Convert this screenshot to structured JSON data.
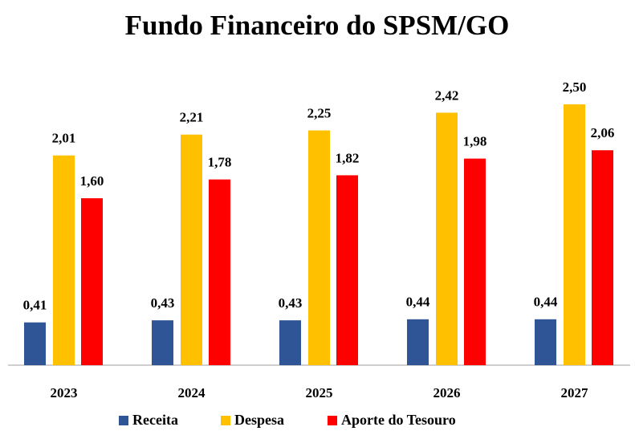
{
  "chart_data": {
    "type": "bar",
    "title": "Fundo Financeiro do SPSM/GO",
    "categories": [
      "2023",
      "2024",
      "2025",
      "2026",
      "2027"
    ],
    "series": [
      {
        "name": "Receita",
        "color": "#2f5597",
        "values": [
          0.41,
          0.43,
          0.43,
          0.44,
          0.44
        ],
        "value_labels": [
          "0,41",
          "0,43",
          "0,43",
          "0,44",
          "0,44"
        ]
      },
      {
        "name": "Despesa",
        "color": "#ffc000",
        "values": [
          2.01,
          2.21,
          2.25,
          2.42,
          2.5
        ],
        "value_labels": [
          "2,01",
          "2,21",
          "2,25",
          "2,42",
          "2,50"
        ]
      },
      {
        "name": "Aporte do Tesouro",
        "color": "#ff0000",
        "values": [
          1.6,
          1.78,
          1.82,
          1.98,
          2.06
        ],
        "value_labels": [
          "1,60",
          "1,78",
          "1,82",
          "1,98",
          "2,06"
        ]
      }
    ]
  }
}
